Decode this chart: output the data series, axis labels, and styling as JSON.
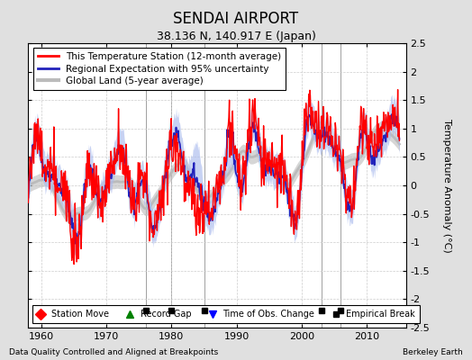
{
  "title": "SENDAI AIRPORT",
  "subtitle": "38.136 N, 140.917 E (Japan)",
  "ylabel": "Temperature Anomaly (°C)",
  "xlabel_bottom_left": "Data Quality Controlled and Aligned at Breakpoints",
  "xlabel_bottom_right": "Berkeley Earth",
  "ylim": [
    -2.5,
    2.5
  ],
  "xlim": [
    1958,
    2016
  ],
  "yticks": [
    -2.5,
    -2,
    -1.5,
    -1,
    -0.5,
    0,
    0.5,
    1,
    1.5,
    2,
    2.5
  ],
  "xticks": [
    1960,
    1970,
    1980,
    1990,
    2000,
    2010
  ],
  "vertical_lines": [
    1976,
    1980,
    1985,
    2003,
    2006
  ],
  "empirical_breaks": [
    1976,
    1980,
    1985,
    2003,
    2006
  ],
  "legend_labels": [
    "This Temperature Station (12-month average)",
    "Regional Expectation with 95% uncertainty",
    "Global Land (5-year average)"
  ],
  "station_color": "#FF0000",
  "regional_color": "#2222BB",
  "regional_fill_color": "#AABBEE",
  "global_color": "#BBBBBB",
  "bg_color": "#E0E0E0",
  "plot_bg_color": "#FFFFFF",
  "grid_color": "#CCCCCC",
  "title_fontsize": 12,
  "subtitle_fontsize": 9,
  "tick_fontsize": 8,
  "ylabel_fontsize": 8
}
